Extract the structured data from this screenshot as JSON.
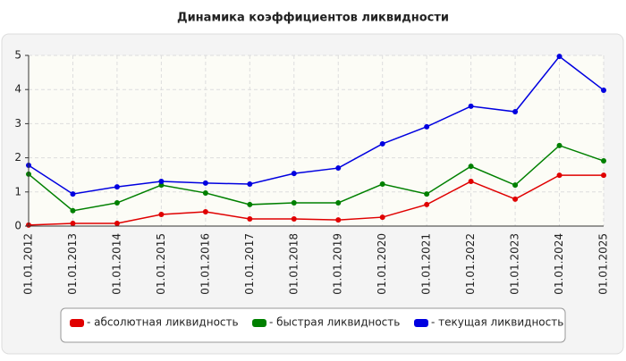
{
  "chart_data": {
    "type": "line",
    "title": "Динамика коэффициентов ликвидности",
    "categories": [
      "01.01.2012",
      "01.01.2013",
      "01.01.2014",
      "01.01.2015",
      "01.01.2016",
      "01.01.2017",
      "01.01.2018",
      "01.01.2019",
      "01.01.2020",
      "01.01.2021",
      "01.01.2022",
      "01.01.2023",
      "01.01.2024",
      "01.01.2025"
    ],
    "series": [
      {
        "name": "- абсолютная ликвидность",
        "color": "#e00000",
        "values": [
          0.03,
          0.08,
          0.08,
          0.34,
          0.42,
          0.21,
          0.21,
          0.18,
          0.26,
          0.63,
          1.31,
          0.79,
          1.49,
          1.49
        ]
      },
      {
        "name": "- быстрая ликвидность",
        "color": "#008000",
        "values": [
          1.52,
          0.45,
          0.68,
          1.2,
          0.97,
          0.63,
          0.68,
          0.68,
          1.23,
          0.94,
          1.75,
          1.2,
          2.36,
          1.91
        ]
      },
      {
        "name": "- текущая ликвидность",
        "color": "#0000e0",
        "values": [
          1.78,
          0.94,
          1.15,
          1.31,
          1.26,
          1.23,
          1.54,
          1.7,
          2.41,
          2.91,
          3.51,
          3.35,
          4.97,
          3.98
        ]
      }
    ],
    "ylim": [
      0,
      5
    ],
    "yticks": [
      0,
      1,
      2,
      3,
      4,
      5
    ],
    "grid": true
  }
}
